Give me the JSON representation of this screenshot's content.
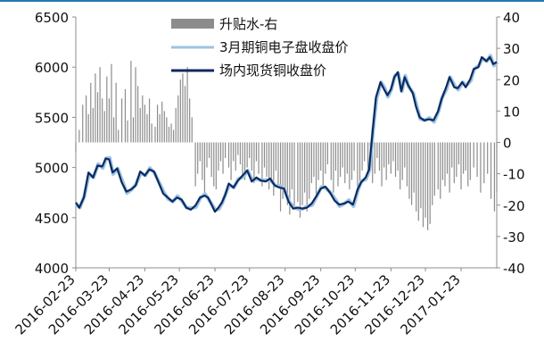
{
  "colors": {
    "rule": "#1f78b4",
    "bars": "#8c8c8c",
    "futures": "#9cc3e6",
    "spot": "#0d2a5e"
  },
  "legend": {
    "premium": "升贴水-右",
    "futures": "3月期铜电子盘收盘价",
    "spot": "场内现货铜收盘价"
  },
  "chart_data": {
    "type": "line+bar",
    "y_left": {
      "ticks": [
        "6500",
        "6000",
        "5500",
        "5000",
        "4500",
        "4000"
      ],
      "range": [
        4000,
        6500
      ]
    },
    "y_right": {
      "ticks": [
        "40",
        "30",
        "20",
        "10",
        "0",
        "-10",
        "-20",
        "-30",
        "-40"
      ],
      "range": [
        -40,
        40
      ]
    },
    "x_ticks": [
      "2016-02-23",
      "2016-03-23",
      "2016-04-23",
      "2016-05-23",
      "2016-06-23",
      "2016-07-23",
      "2016-08-23",
      "2016-09-23",
      "2016-10-23",
      "2016-11-23",
      "2016-12-23",
      "2017-01-23"
    ],
    "x_range": [
      "2016-02-23",
      "2017-02-23"
    ],
    "spot_anchors": [
      [
        "2016-02-23",
        4650
      ],
      [
        "2016-02-26",
        4600
      ],
      [
        "2016-03-01",
        4700
      ],
      [
        "2016-03-05",
        4950
      ],
      [
        "2016-03-09",
        4900
      ],
      [
        "2016-03-13",
        5020
      ],
      [
        "2016-03-17",
        5010
      ],
      [
        "2016-03-20",
        5090
      ],
      [
        "2016-03-23",
        5080
      ],
      [
        "2016-03-26",
        4950
      ],
      [
        "2016-03-30",
        4990
      ],
      [
        "2016-04-03",
        4850
      ],
      [
        "2016-04-07",
        4760
      ],
      [
        "2016-04-11",
        4780
      ],
      [
        "2016-04-15",
        4820
      ],
      [
        "2016-04-19",
        4960
      ],
      [
        "2016-04-23",
        4920
      ],
      [
        "2016-04-27",
        4980
      ],
      [
        "2016-05-01",
        4960
      ],
      [
        "2016-05-05",
        4850
      ],
      [
        "2016-05-09",
        4740
      ],
      [
        "2016-05-13",
        4700
      ],
      [
        "2016-05-17",
        4660
      ],
      [
        "2016-05-21",
        4700
      ],
      [
        "2016-05-25",
        4680
      ],
      [
        "2016-05-29",
        4600
      ],
      [
        "2016-06-02",
        4580
      ],
      [
        "2016-06-06",
        4620
      ],
      [
        "2016-06-10",
        4700
      ],
      [
        "2016-06-14",
        4720
      ],
      [
        "2016-06-17",
        4700
      ],
      [
        "2016-06-20",
        4630
      ],
      [
        "2016-06-23",
        4560
      ],
      [
        "2016-06-26",
        4600
      ],
      [
        "2016-06-29",
        4650
      ],
      [
        "2016-07-02",
        4730
      ],
      [
        "2016-07-05",
        4840
      ],
      [
        "2016-07-09",
        4800
      ],
      [
        "2016-07-13",
        4870
      ],
      [
        "2016-07-17",
        4920
      ],
      [
        "2016-07-21",
        4970
      ],
      [
        "2016-07-25",
        4860
      ],
      [
        "2016-07-29",
        4900
      ],
      [
        "2016-08-02",
        4870
      ],
      [
        "2016-08-06",
        4860
      ],
      [
        "2016-08-10",
        4890
      ],
      [
        "2016-08-14",
        4820
      ],
      [
        "2016-08-18",
        4800
      ],
      [
        "2016-08-22",
        4790
      ],
      [
        "2016-08-26",
        4660
      ],
      [
        "2016-08-30",
        4590
      ],
      [
        "2016-09-03",
        4600
      ],
      [
        "2016-09-07",
        4590
      ],
      [
        "2016-09-11",
        4600
      ],
      [
        "2016-09-15",
        4640
      ],
      [
        "2016-09-19",
        4710
      ],
      [
        "2016-09-23",
        4790
      ],
      [
        "2016-09-27",
        4810
      ],
      [
        "2016-10-01",
        4750
      ],
      [
        "2016-10-05",
        4670
      ],
      [
        "2016-10-09",
        4630
      ],
      [
        "2016-10-13",
        4640
      ],
      [
        "2016-10-17",
        4660
      ],
      [
        "2016-10-21",
        4630
      ],
      [
        "2016-10-25",
        4780
      ],
      [
        "2016-10-28",
        4850
      ],
      [
        "2016-11-01",
        4900
      ],
      [
        "2016-11-04",
        4980
      ],
      [
        "2016-11-07",
        5350
      ],
      [
        "2016-11-10",
        5700
      ],
      [
        "2016-11-14",
        5850
      ],
      [
        "2016-11-17",
        5780
      ],
      [
        "2016-11-20",
        5720
      ],
      [
        "2016-11-23",
        5780
      ],
      [
        "2016-11-26",
        5900
      ],
      [
        "2016-11-29",
        5950
      ],
      [
        "2016-12-02",
        5760
      ],
      [
        "2016-12-05",
        5900
      ],
      [
        "2016-12-08",
        5820
      ],
      [
        "2016-12-12",
        5740
      ],
      [
        "2016-12-15",
        5600
      ],
      [
        "2016-12-18",
        5500
      ],
      [
        "2016-12-22",
        5470
      ],
      [
        "2016-12-26",
        5480
      ],
      [
        "2016-12-30",
        5470
      ],
      [
        "2017-01-03",
        5560
      ],
      [
        "2017-01-06",
        5680
      ],
      [
        "2017-01-10",
        5800
      ],
      [
        "2017-01-13",
        5900
      ],
      [
        "2017-01-17",
        5800
      ],
      [
        "2017-01-20",
        5790
      ],
      [
        "2017-01-24",
        5850
      ],
      [
        "2017-01-27",
        5800
      ],
      [
        "2017-01-31",
        5880
      ],
      [
        "2017-02-03",
        5980
      ],
      [
        "2017-02-07",
        6000
      ],
      [
        "2017-02-10",
        6100
      ],
      [
        "2017-02-14",
        6060
      ],
      [
        "2017-02-17",
        6100
      ],
      [
        "2017-02-20",
        6030
      ],
      [
        "2017-02-23",
        6050
      ]
    ],
    "futures_offset": 15,
    "premium_bars": [
      [
        "2016-02-23",
        -3
      ],
      [
        "2016-02-26",
        4
      ],
      [
        "2016-02-29",
        12
      ],
      [
        "2016-03-03",
        15
      ],
      [
        "2016-03-05",
        9
      ],
      [
        "2016-03-07",
        19
      ],
      [
        "2016-03-09",
        11
      ],
      [
        "2016-03-11",
        22
      ],
      [
        "2016-03-13",
        16
      ],
      [
        "2016-03-15",
        24
      ],
      [
        "2016-03-17",
        14
      ],
      [
        "2016-03-19",
        10
      ],
      [
        "2016-03-21",
        21
      ],
      [
        "2016-03-23",
        14
      ],
      [
        "2016-03-25",
        25
      ],
      [
        "2016-03-27",
        8
      ],
      [
        "2016-03-29",
        19
      ],
      [
        "2016-03-31",
        4
      ],
      [
        "2016-04-03",
        14
      ],
      [
        "2016-04-06",
        17
      ],
      [
        "2016-04-08",
        7
      ],
      [
        "2016-04-11",
        26
      ],
      [
        "2016-04-13",
        8
      ],
      [
        "2016-04-15",
        24
      ],
      [
        "2016-04-17",
        18
      ],
      [
        "2016-04-19",
        11
      ],
      [
        "2016-04-21",
        15
      ],
      [
        "2016-04-23",
        12
      ],
      [
        "2016-04-25",
        9
      ],
      [
        "2016-04-27",
        14
      ],
      [
        "2016-04-29",
        6
      ],
      [
        "2016-05-02",
        5
      ],
      [
        "2016-05-04",
        12
      ],
      [
        "2016-05-06",
        9
      ],
      [
        "2016-05-08",
        13
      ],
      [
        "2016-05-10",
        10
      ],
      [
        "2016-05-12",
        8
      ],
      [
        "2016-05-14",
        5
      ],
      [
        "2016-05-16",
        6
      ],
      [
        "2016-05-18",
        4
      ],
      [
        "2016-05-20",
        11
      ],
      [
        "2016-05-22",
        15
      ],
      [
        "2016-05-24",
        20
      ],
      [
        "2016-05-26",
        22
      ],
      [
        "2016-05-28",
        18
      ],
      [
        "2016-05-30",
        24
      ],
      [
        "2016-06-01",
        14
      ],
      [
        "2016-06-03",
        8
      ],
      [
        "2016-06-06",
        -14
      ],
      [
        "2016-06-08",
        -10
      ],
      [
        "2016-06-10",
        -6
      ],
      [
        "2016-06-12",
        -12
      ],
      [
        "2016-06-14",
        -17
      ],
      [
        "2016-06-16",
        -8
      ],
      [
        "2016-06-18",
        -5
      ],
      [
        "2016-06-20",
        -11
      ],
      [
        "2016-06-22",
        -14
      ],
      [
        "2016-06-24",
        -15
      ],
      [
        "2016-06-26",
        -9
      ],
      [
        "2016-06-28",
        -6
      ],
      [
        "2016-06-30",
        -10
      ],
      [
        "2016-07-02",
        -5
      ],
      [
        "2016-07-05",
        -8
      ],
      [
        "2016-07-07",
        -12
      ],
      [
        "2016-07-09",
        -6
      ],
      [
        "2016-07-11",
        -9
      ],
      [
        "2016-07-13",
        -4
      ],
      [
        "2016-07-15",
        -7
      ],
      [
        "2016-07-17",
        -11
      ],
      [
        "2016-07-19",
        -12
      ],
      [
        "2016-07-21",
        -8
      ],
      [
        "2016-07-23",
        -5
      ],
      [
        "2016-07-25",
        -9
      ],
      [
        "2016-07-27",
        -13
      ],
      [
        "2016-07-29",
        -6
      ],
      [
        "2016-07-31",
        -10
      ],
      [
        "2016-08-03",
        -14
      ],
      [
        "2016-08-05",
        -8
      ],
      [
        "2016-08-07",
        -11
      ],
      [
        "2016-08-09",
        -15
      ],
      [
        "2016-08-11",
        -12
      ],
      [
        "2016-08-13",
        -17
      ],
      [
        "2016-08-15",
        -9
      ],
      [
        "2016-08-17",
        -14
      ],
      [
        "2016-08-19",
        -22
      ],
      [
        "2016-08-21",
        -18
      ],
      [
        "2016-08-23",
        -16
      ],
      [
        "2016-08-25",
        -20
      ],
      [
        "2016-08-27",
        -23
      ],
      [
        "2016-08-29",
        -15
      ],
      [
        "2016-08-31",
        -21
      ],
      [
        "2016-09-03",
        -19
      ],
      [
        "2016-09-05",
        -24
      ],
      [
        "2016-09-07",
        -20
      ],
      [
        "2016-09-09",
        -16
      ],
      [
        "2016-09-11",
        -22
      ],
      [
        "2016-09-13",
        -18
      ],
      [
        "2016-09-15",
        -13
      ],
      [
        "2016-09-17",
        -11
      ],
      [
        "2016-09-19",
        -17
      ],
      [
        "2016-09-21",
        -12
      ],
      [
        "2016-09-23",
        -9
      ],
      [
        "2016-09-25",
        -14
      ],
      [
        "2016-09-27",
        -10
      ],
      [
        "2016-09-29",
        -7
      ],
      [
        "2016-10-02",
        -12
      ],
      [
        "2016-10-04",
        -16
      ],
      [
        "2016-10-06",
        -9
      ],
      [
        "2016-10-08",
        -14
      ],
      [
        "2016-10-10",
        -11
      ],
      [
        "2016-10-12",
        -8
      ],
      [
        "2016-10-14",
        -13
      ],
      [
        "2016-10-16",
        -10
      ],
      [
        "2016-10-18",
        -15
      ],
      [
        "2016-10-20",
        -12
      ],
      [
        "2016-10-22",
        -9
      ],
      [
        "2016-10-25",
        -16
      ],
      [
        "2016-10-27",
        -13
      ],
      [
        "2016-10-29",
        -9
      ],
      [
        "2016-10-31",
        -6
      ],
      [
        "2016-11-03",
        -11
      ],
      [
        "2016-11-05",
        -8
      ],
      [
        "2016-11-07",
        -13
      ],
      [
        "2016-11-09",
        -10
      ],
      [
        "2016-11-11",
        -5
      ],
      [
        "2016-11-13",
        -9
      ],
      [
        "2016-11-15",
        -14
      ],
      [
        "2016-11-17",
        -8
      ],
      [
        "2016-11-19",
        -12
      ],
      [
        "2016-11-21",
        -7
      ],
      [
        "2016-11-23",
        -10
      ],
      [
        "2016-11-25",
        -6
      ],
      [
        "2016-11-27",
        -11
      ],
      [
        "2016-11-29",
        -9
      ],
      [
        "2016-12-01",
        -15
      ],
      [
        "2016-12-03",
        -12
      ],
      [
        "2016-12-05",
        -8
      ],
      [
        "2016-12-07",
        -14
      ],
      [
        "2016-12-09",
        -18
      ],
      [
        "2016-12-11",
        -20
      ],
      [
        "2016-12-13",
        -16
      ],
      [
        "2016-12-15",
        -22
      ],
      [
        "2016-12-17",
        -25
      ],
      [
        "2016-12-19",
        -21
      ],
      [
        "2016-12-21",
        -27
      ],
      [
        "2016-12-23",
        -24
      ],
      [
        "2016-12-25",
        -28
      ],
      [
        "2016-12-27",
        -26
      ],
      [
        "2016-12-29",
        -20
      ],
      [
        "2016-12-31",
        -17
      ],
      [
        "2017-01-03",
        -15
      ],
      [
        "2017-01-05",
        -18
      ],
      [
        "2017-01-07",
        -12
      ],
      [
        "2017-01-09",
        -14
      ],
      [
        "2017-01-11",
        -10
      ],
      [
        "2017-01-13",
        -16
      ],
      [
        "2017-01-15",
        -8
      ],
      [
        "2017-01-17",
        -13
      ],
      [
        "2017-01-19",
        -11
      ],
      [
        "2017-01-21",
        -7
      ],
      [
        "2017-01-23",
        -15
      ],
      [
        "2017-01-25",
        -10
      ],
      [
        "2017-01-27",
        -9
      ],
      [
        "2017-01-29",
        -14
      ],
      [
        "2017-01-31",
        -12
      ],
      [
        "2017-02-03",
        -8
      ],
      [
        "2017-02-06",
        -11
      ],
      [
        "2017-02-09",
        -16
      ],
      [
        "2017-02-12",
        -13
      ],
      [
        "2017-02-15",
        -10
      ],
      [
        "2017-02-18",
        -18
      ],
      [
        "2017-02-21",
        -22
      ],
      [
        "2017-02-23",
        -16
      ]
    ]
  }
}
